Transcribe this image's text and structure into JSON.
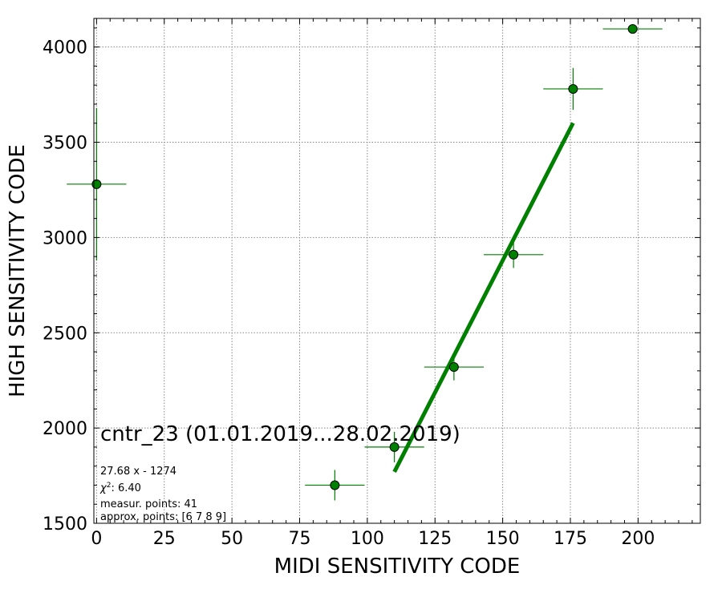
{
  "chart_data": {
    "type": "scatter",
    "title": "cntr_23 (01.01.2019...28.02.2019)",
    "xlabel": "MIDI SENSITIVITY CODE",
    "ylabel": "HIGH SENSITIVITY CODE",
    "xlim": [
      -1,
      223
    ],
    "ylim": [
      1500,
      4150
    ],
    "xticks": [
      0,
      25,
      50,
      75,
      100,
      125,
      150,
      175,
      200
    ],
    "yticks": [
      1500,
      2000,
      2500,
      3000,
      3500,
      4000
    ],
    "x_minor_step": 5,
    "y_minor_step": 100,
    "grid": true,
    "grid_style": "dotted",
    "series": [
      {
        "points": [
          {
            "x": 0,
            "y": 3280,
            "xerr": 11,
            "yerr": 400
          },
          {
            "x": 88,
            "y": 1700,
            "xerr": 11,
            "yerr": 80
          },
          {
            "x": 110,
            "y": 1900,
            "xerr": 11,
            "yerr": 80
          },
          {
            "x": 132,
            "y": 2320,
            "xerr": 11,
            "yerr": 70
          },
          {
            "x": 154,
            "y": 2910,
            "xerr": 11,
            "yerr": 70
          },
          {
            "x": 176,
            "y": 3780,
            "xerr": 11,
            "yerr": 110
          },
          {
            "x": 198,
            "y": 4095,
            "xerr": 11,
            "yerr": 0
          }
        ],
        "color": "#008000"
      }
    ],
    "fit_line": {
      "x": [
        110,
        176
      ],
      "y": [
        1770,
        3601
      ],
      "color": "#008000"
    },
    "annotations": [
      {
        "key": "formula",
        "text": "27.68 x - 1274"
      },
      {
        "key": "chi2_value",
        "text": ": 6.40"
      },
      {
        "key": "measur",
        "text": "measur. points: 41"
      },
      {
        "key": "approx",
        "text": "approx. points: [6 7 8 9]"
      }
    ]
  }
}
